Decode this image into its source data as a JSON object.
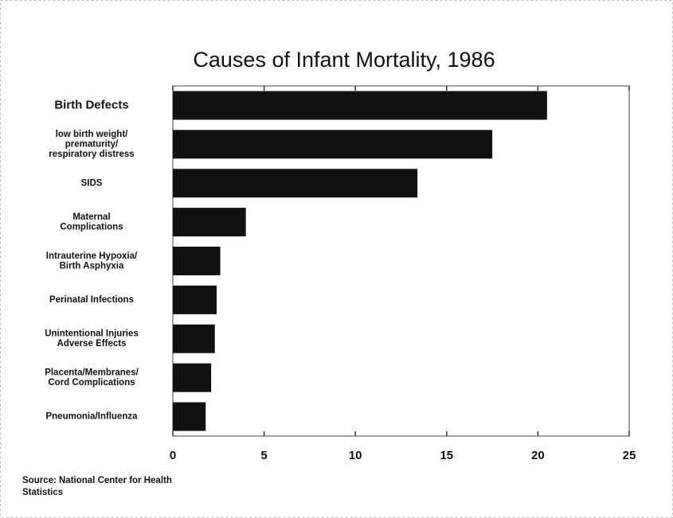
{
  "chart_data": {
    "type": "barh",
    "title": "Causes of Infant Mortality, 1986",
    "categories": [
      "Birth Defects",
      "low birth weight/\nprematurity/\nrespiratory distress",
      "SIDS",
      "Maternal\nComplications",
      "Intrauterine Hypoxia/\nBirth Asphyxia",
      "Perinatal Infections",
      "Unintentional Injuries\nAdverse Effects",
      "Placenta/Membranes/\nCord Complications",
      "Pneumonia/Influenza"
    ],
    "values": [
      20.5,
      17.5,
      13.4,
      4.0,
      2.6,
      2.4,
      2.3,
      2.1,
      1.8
    ],
    "color": "#111111",
    "xlim": [
      0,
      25
    ],
    "xticks": [
      0,
      5,
      10,
      15,
      20,
      25
    ],
    "grid": false,
    "annotations": [
      "Source: National Center for Health\nStatistics"
    ]
  }
}
